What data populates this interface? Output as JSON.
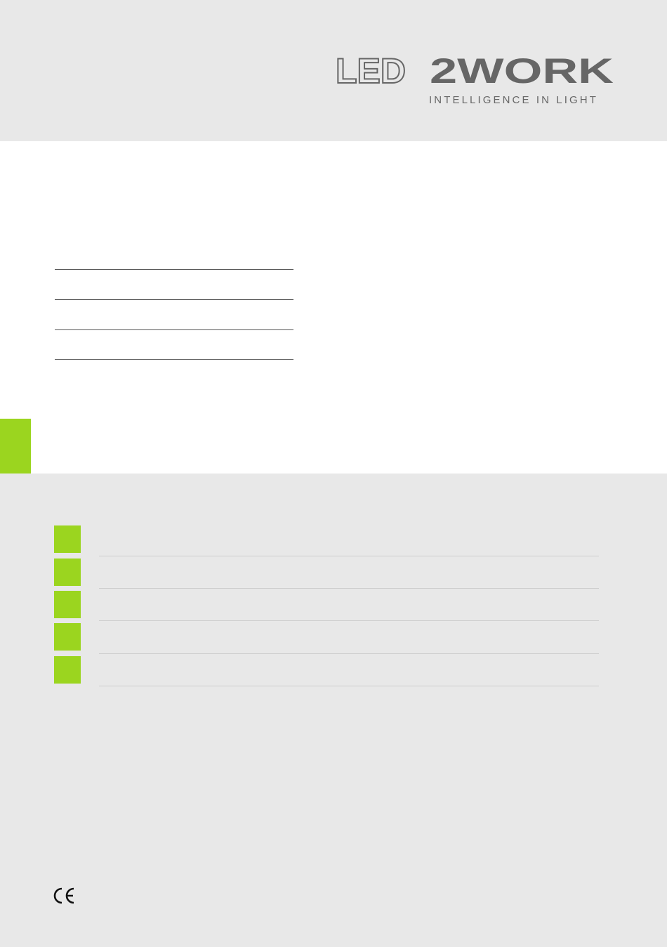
{
  "logo": {
    "brand_outline": "LED",
    "brand_solid": "2WORK",
    "tagline": "INTELLIGENCE IN LIGHT",
    "text_color": "#666666"
  },
  "accent_color": "#9bd51f",
  "marks": {
    "ce": "CE"
  }
}
